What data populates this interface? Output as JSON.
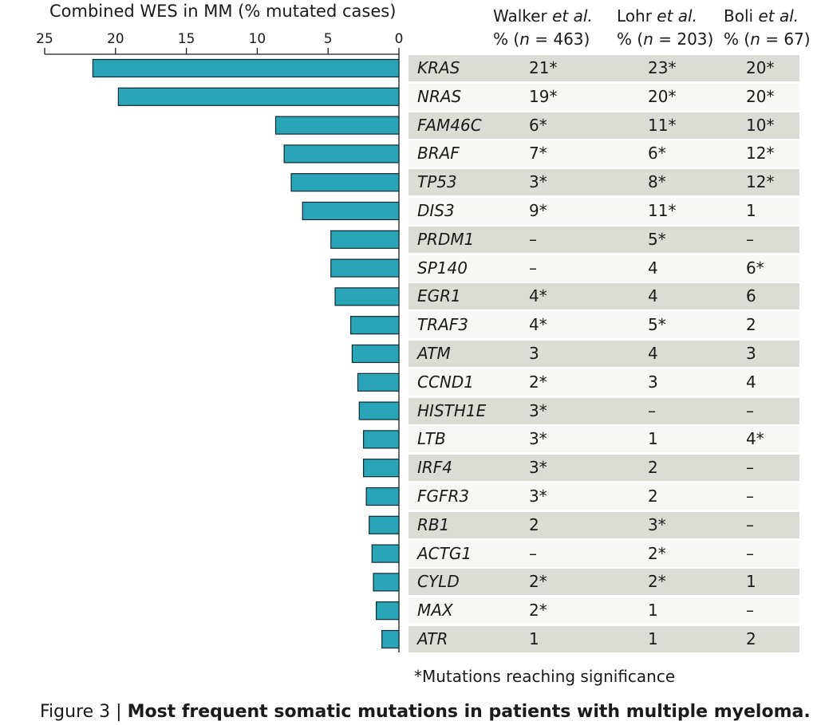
{
  "columns": {
    "walker": {
      "name": "Walker",
      "etal": "et al.",
      "pct": "%",
      "n": "n",
      "eq": "= 463)"
    },
    "lohr": {
      "name": "Lohr",
      "etal": "et al.",
      "pct": "%",
      "n": "n",
      "eq": "= 203)"
    },
    "boli": {
      "name": "Boli",
      "etal": "et al.",
      "pct": "%",
      "n": "n",
      "eq": "= 67)"
    }
  },
  "rows": [
    {
      "gene": "KRAS",
      "walker": "21*",
      "lohr": "23*",
      "boli": "20*"
    },
    {
      "gene": "NRAS",
      "walker": "19*",
      "lohr": "20*",
      "boli": "20*"
    },
    {
      "gene": "FAM46C",
      "walker": "6*",
      "lohr": "11*",
      "boli": "10*"
    },
    {
      "gene": "BRAF",
      "walker": "7*",
      "lohr": "6*",
      "boli": "12*"
    },
    {
      "gene": "TP53",
      "walker": "3*",
      "lohr": "8*",
      "boli": "12*"
    },
    {
      "gene": "DIS3",
      "walker": "9*",
      "lohr": "11*",
      "boli": "1"
    },
    {
      "gene": "PRDM1",
      "walker": "–",
      "lohr": "5*",
      "boli": "–"
    },
    {
      "gene": "SP140",
      "walker": "–",
      "lohr": "4",
      "boli": "6*"
    },
    {
      "gene": "EGR1",
      "walker": "4*",
      "lohr": "4",
      "boli": "6"
    },
    {
      "gene": "TRAF3",
      "walker": "4*",
      "lohr": "5*",
      "boli": "2"
    },
    {
      "gene": "ATM",
      "walker": "3",
      "lohr": "4",
      "boli": "3"
    },
    {
      "gene": "CCND1",
      "walker": "2*",
      "lohr": "3",
      "boli": "4"
    },
    {
      "gene": "HISTH1E",
      "walker": "3*",
      "lohr": "–",
      "boli": "–"
    },
    {
      "gene": "LTB",
      "walker": "3*",
      "lohr": "1",
      "boli": "4*"
    },
    {
      "gene": "IRF4",
      "walker": "3*",
      "lohr": "2",
      "boli": "–"
    },
    {
      "gene": "FGFR3",
      "walker": "3*",
      "lohr": "2",
      "boli": "–"
    },
    {
      "gene": "RB1",
      "walker": "2",
      "lohr": "3*",
      "boli": "–"
    },
    {
      "gene": "ACTG1",
      "walker": "–",
      "lohr": "2*",
      "boli": "–"
    },
    {
      "gene": "CYLD",
      "walker": "2*",
      "lohr": "2*",
      "boli": "1"
    },
    {
      "gene": "MAX",
      "walker": "2*",
      "lohr": "1",
      "boli": "–"
    },
    {
      "gene": "ATR",
      "walker": "1",
      "lohr": "1",
      "boli": "2"
    }
  ],
  "footnote": "*Mutations reaching significance",
  "caption": {
    "prefix": "Figure 3 | ",
    "title": "Most frequent somatic mutations in patients with multiple myeloma."
  },
  "colors": {
    "bar": "#2aa5b8",
    "bar_edge": "#0d2a30",
    "row_shaded": "#dcdcd6",
    "row_plain": "#f7f7f5"
  },
  "chart_data": {
    "type": "bar",
    "orientation": "horizontal",
    "direction": "right-to-left",
    "title": "Combined WES in MM (% mutated cases)",
    "xlim": [
      0,
      25
    ],
    "ticks": [
      25,
      20,
      15,
      10,
      5,
      0
    ],
    "categories": [
      "KRAS",
      "NRAS",
      "FAM46C",
      "BRAF",
      "TP53",
      "DIS3",
      "PRDM1",
      "SP140",
      "EGR1",
      "TRAF3",
      "ATM",
      "CCND1",
      "HISTH1E",
      "LTB",
      "IRF4",
      "FGFR3",
      "RB1",
      "ACTG1",
      "CYLD",
      "MAX",
      "ATR"
    ],
    "values": [
      21.6,
      19.8,
      8.7,
      8.1,
      7.6,
      6.8,
      4.8,
      4.8,
      4.5,
      3.4,
      3.3,
      2.9,
      2.8,
      2.5,
      2.5,
      2.3,
      2.1,
      1.9,
      1.8,
      1.6,
      1.2
    ]
  }
}
